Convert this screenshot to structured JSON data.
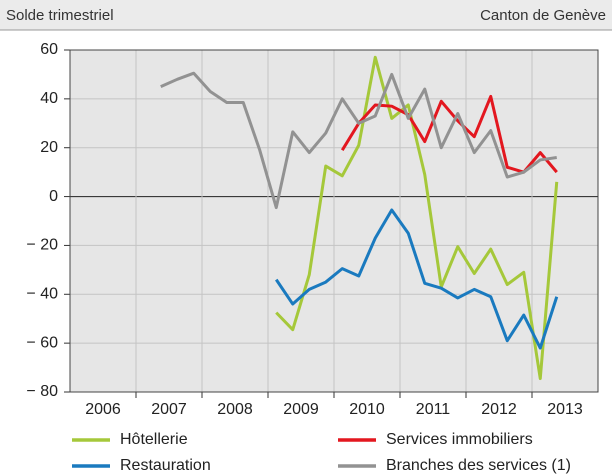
{
  "chart_data": {
    "type": "line",
    "title": "Solde trimestriel",
    "subtitle": "Canton de Genève",
    "x": [
      2007.375,
      2007.625,
      2007.875,
      2008.125,
      2008.375,
      2008.625,
      2008.875,
      2009.125,
      2009.375,
      2009.625,
      2009.875,
      2010.125,
      2010.375,
      2010.625,
      2010.875,
      2011.125,
      2011.375,
      2011.625,
      2011.875,
      2012.125,
      2012.375,
      2012.625,
      2012.875,
      2013.125,
      2013.375
    ],
    "series": [
      {
        "name": "Hôtellerie",
        "color": "#a5c83a",
        "values": [
          null,
          null,
          null,
          null,
          null,
          null,
          null,
          -47.5,
          -54.5,
          -32,
          12.5,
          8.5,
          21,
          57,
          32,
          37.5,
          9,
          -37,
          -20.5,
          -31.5,
          -21.5,
          -36,
          -31,
          -74.5,
          6
        ]
      },
      {
        "name": "Services immobiliers",
        "color": "#e3171f",
        "values": [
          null,
          null,
          null,
          null,
          null,
          null,
          null,
          null,
          null,
          null,
          null,
          19,
          30,
          37.5,
          37,
          33.5,
          22.5,
          39,
          31,
          24.5,
          41,
          12,
          10,
          18,
          10
        ]
      },
      {
        "name": "Restauration",
        "color": "#1a7abf",
        "values": [
          null,
          null,
          null,
          null,
          null,
          null,
          null,
          -34,
          -44,
          -38,
          -35,
          -29.5,
          -32.5,
          -17,
          -5.5,
          -15,
          -35.5,
          -37.5,
          -41.5,
          -38,
          -41,
          -59,
          -48.5,
          -62,
          -41
        ]
      },
      {
        "name": "Branches des services (1)",
        "color": "#929292",
        "values": [
          45,
          48,
          50.5,
          43,
          38.5,
          38.5,
          19,
          -4.5,
          26.5,
          18,
          26,
          40,
          30,
          33,
          50,
          32,
          44,
          20,
          34,
          18,
          27,
          8,
          10,
          15,
          16
        ]
      }
    ],
    "xlim": [
      2006,
      2014
    ],
    "xticks": [
      {
        "value": 2006.5,
        "label": "2006"
      },
      {
        "value": 2007.5,
        "label": "2007"
      },
      {
        "value": 2008.5,
        "label": "2008"
      },
      {
        "value": 2009.5,
        "label": "2009"
      },
      {
        "value": 2010.5,
        "label": "2010"
      },
      {
        "value": 2011.5,
        "label": "2011"
      },
      {
        "value": 2012.5,
        "label": "2012"
      },
      {
        "value": 2013.5,
        "label": "2013"
      }
    ],
    "ylim": [
      -80,
      60
    ],
    "yticks": [
      60,
      40,
      20,
      0,
      {
        "value": -20,
        "label": "− 20"
      },
      {
        "value": -40,
        "label": "− 40"
      },
      {
        "value": -60,
        "label": "− 60"
      },
      {
        "value": -80,
        "label": "− 80"
      }
    ],
    "grid": true
  }
}
